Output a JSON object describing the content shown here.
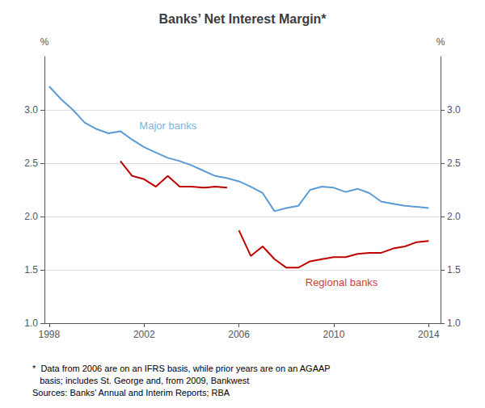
{
  "chart_data": {
    "type": "line",
    "title": "Banks’ Net Interest Margin*",
    "series": [
      {
        "color": "#5B9BD5",
        "x": [
          1998.0,
          1998.5,
          1999.0,
          1999.5,
          2000.0,
          2000.5,
          2001.0,
          2001.5,
          2002.0,
          2002.5,
          2003.0,
          2003.5,
          2004.0,
          2004.5,
          2005.0,
          2005.5,
          2006.0,
          2006.5,
          2007.0,
          2007.5,
          2008.0,
          2008.5,
          2009.0,
          2009.5,
          2010.0,
          2010.5,
          2011.0,
          2011.5,
          2012.0,
          2012.5,
          2013.0,
          2013.5,
          2014.0
        ],
        "values": [
          3.22,
          3.1,
          3.0,
          2.88,
          2.82,
          2.78,
          2.8,
          2.72,
          2.65,
          2.6,
          2.55,
          2.52,
          2.48,
          2.43,
          2.38,
          2.36,
          2.33,
          2.28,
          2.22,
          2.05,
          2.08,
          2.1,
          2.25,
          2.28,
          2.27,
          2.23,
          2.26,
          2.22,
          2.14,
          2.12,
          2.1,
          2.09,
          2.08
        ]
      },
      {
        "color": "#C00000",
        "x": [
          2001.0,
          2001.5,
          2002.0,
          2002.5,
          2003.0,
          2003.5,
          2004.0,
          2004.5,
          2005.0,
          2005.5
        ],
        "values": [
          2.52,
          2.38,
          2.35,
          2.28,
          2.38,
          2.28,
          2.28,
          2.27,
          2.28,
          2.27
        ]
      },
      {
        "color": "#C00000",
        "x": [
          2006.0,
          2006.5,
          2007.0,
          2007.5,
          2008.0,
          2008.5,
          2009.0,
          2009.5,
          2010.0,
          2010.5,
          2011.0,
          2011.5,
          2012.0,
          2012.5,
          2013.0,
          2013.5,
          2014.0
        ],
        "values": [
          1.87,
          1.63,
          1.72,
          1.6,
          1.52,
          1.52,
          1.58,
          1.6,
          1.62,
          1.62,
          1.65,
          1.66,
          1.66,
          1.7,
          1.72,
          1.76,
          1.77
        ]
      }
    ],
    "annotations": [
      {
        "text": "Major banks",
        "x": 2001.8,
        "y": 2.85,
        "color": "#5B9BD5"
      },
      {
        "text": "Regional banks",
        "x": 2008.8,
        "y": 1.38,
        "color": "#C00000"
      }
    ],
    "xlim": [
      1997.8,
      2014.5
    ],
    "xticks": [
      1998,
      2002,
      2006,
      2010,
      2014
    ],
    "ylim": [
      1.0,
      3.5
    ],
    "yticks": [
      {
        "value": 1.0,
        "label": "1.0"
      },
      {
        "value": 1.5,
        "label": "1.5"
      },
      {
        "value": 2.0,
        "label": "2.0"
      },
      {
        "value": 2.5,
        "label": "2.5"
      },
      {
        "value": 3.0,
        "label": "3.0"
      }
    ],
    "y2lim": [
      1.0,
      3.5
    ],
    "y2ticks": [
      {
        "value": 1.0,
        "label": "1.0"
      },
      {
        "value": 1.5,
        "label": "1.5"
      },
      {
        "value": 2.0,
        "label": "2.0"
      },
      {
        "value": 2.5,
        "label": "2.5"
      },
      {
        "value": 3.0,
        "label": "3.0"
      }
    ],
    "ylabel": "%",
    "y2label": "%",
    "grid": true,
    "footnotes": [
      "*  Data from 2006 are on an IFRS basis, while prior years are on an AGAAP",
      "   basis; includes St. George and, from 2009, Bankwest",
      "Sources: Banks’ Annual and Interim Reports; RBA"
    ]
  }
}
